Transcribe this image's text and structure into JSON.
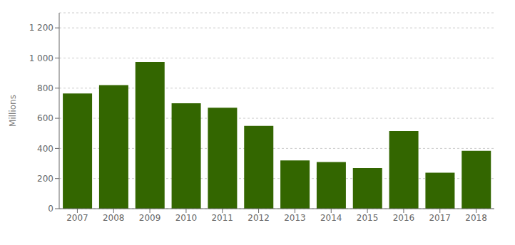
{
  "chart_data": {
    "type": "bar",
    "categories": [
      "2007",
      "2008",
      "2009",
      "2010",
      "2011",
      "2012",
      "2013",
      "2014",
      "2015",
      "2016",
      "2017",
      "2018"
    ],
    "values": [
      765,
      820,
      974,
      700,
      670,
      550,
      320,
      310,
      269,
      515,
      239,
      384
    ],
    "color": "#336600",
    "ylabel": "Millions",
    "ylim": [
      0,
      1300
    ],
    "yticks": [
      0,
      200,
      400,
      600,
      800,
      {
        "value": 1000,
        "label": "1 000"
      },
      {
        "value": 1200,
        "label": "1 200"
      }
    ],
    "grid": true
  }
}
